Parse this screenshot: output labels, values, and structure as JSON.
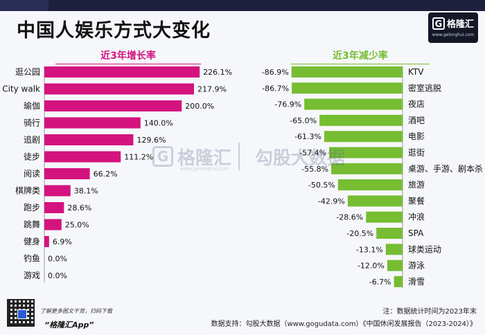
{
  "title": "中国人娱乐方式大变化",
  "brand": {
    "logo_letter": "G",
    "name": "格隆汇",
    "url": "www.gelonghui.com"
  },
  "watermark": {
    "left": "格隆汇",
    "sub": "www.gelonghui.com",
    "right": "勾股大数据"
  },
  "footer": {
    "promo_line1": "了解更多图文干货，扫码下载",
    "promo_line2": "“格隆汇App”",
    "note": "注：数据统计时间为2023年末",
    "source": "数据支持：勾股大数据（www.gogudata.com）《中国休闲发展报告（2023-2024）》"
  },
  "colors": {
    "increase": "#d4137f",
    "decrease": "#76bd32",
    "background": "#f6f7fb"
  },
  "chart_data": [
    {
      "type": "bar",
      "orientation": "horizontal",
      "title": "近3年增长率",
      "categories": [
        "逛公园",
        "City walk",
        "瑜伽",
        "骑行",
        "追剧",
        "徒步",
        "阅读",
        "棋牌类",
        "跑步",
        "跳舞",
        "健身",
        "钓鱼",
        "游戏"
      ],
      "values": [
        226.1,
        217.9,
        200.0,
        140.0,
        129.6,
        111.2,
        66.2,
        38.1,
        28.6,
        25.0,
        6.9,
        0.0,
        0.0
      ],
      "labels": [
        "226.1%",
        "217.9%",
        "200.0%",
        "140.0%",
        "129.6%",
        "111.2%",
        "66.2%",
        "38.1%",
        "28.6%",
        "25.0%",
        "6.9%",
        "0.0%",
        "0.0%"
      ],
      "unit": "%",
      "xlim": [
        0,
        230
      ]
    },
    {
      "type": "bar",
      "orientation": "horizontal",
      "title": "近3年减少率",
      "categories": [
        "KTV",
        "密室逃脱",
        "夜店",
        "酒吧",
        "电影",
        "逛街",
        "桌游、手游、剧本杀",
        "旅游",
        "聚餐",
        "冲浪",
        "SPA",
        "球类运动",
        "游泳",
        "滑雪"
      ],
      "values": [
        -86.9,
        -86.7,
        -76.9,
        -65.0,
        -61.3,
        -57.4,
        -55.8,
        -50.5,
        -42.9,
        -28.6,
        -20.5,
        -13.1,
        -12.0,
        -6.7
      ],
      "labels": [
        "-86.9%",
        "-86.7%",
        "-76.9%",
        "-65.0%",
        "-61.3%",
        "-57.4%",
        "-55.8%",
        "-50.5%",
        "-42.9%",
        "-28.6%",
        "-20.5%",
        "-13.1%",
        "-12.0%",
        "-6.7%"
      ],
      "unit": "%",
      "xlim": [
        -90,
        0
      ]
    }
  ]
}
